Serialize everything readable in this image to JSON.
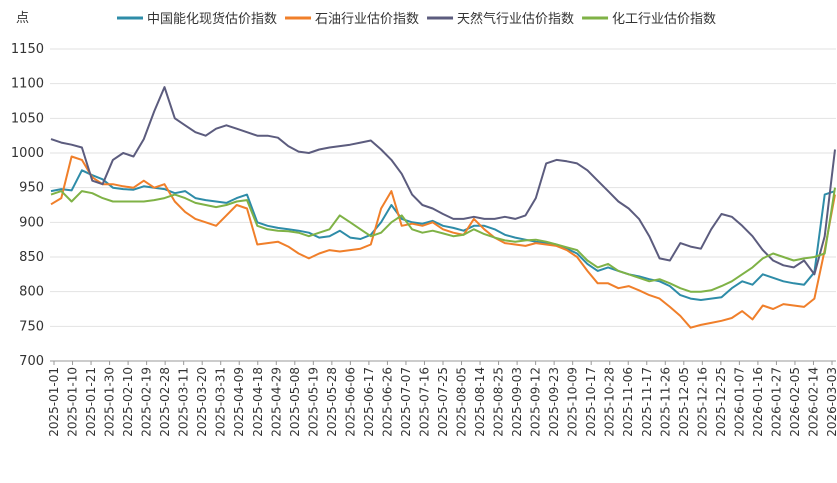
{
  "chart_data": {
    "type": "line",
    "ylabel": "点",
    "ylim": [
      700,
      1150
    ],
    "yticks": [
      700,
      750,
      800,
      850,
      900,
      950,
      1000,
      1050,
      1100,
      1150
    ],
    "x_tick_labels": [
      "2025-01-01",
      "2025-01-10",
      "2025-01-21",
      "2025-01-30",
      "2025-02-10",
      "2025-02-19",
      "2025-02-28",
      "2025-03-11",
      "2025-03-20",
      "2025-03-31",
      "2025-04-09",
      "2025-04-18",
      "2025-04-29",
      "2025-05-08",
      "2025-05-19",
      "2025-05-28",
      "2025-06-06",
      "2025-06-17",
      "2025-06-26",
      "2025-07-07",
      "2025-07-16",
      "2025-07-25",
      "2025-08-05",
      "2025-08-14",
      "2025-08-25",
      "2025-09-03",
      "2025-09-12",
      "2025-09-23",
      "2025-10-09",
      "2025-10-17",
      "2025-10-28",
      "2025-11-06",
      "2025-11-17",
      "2025-11-26",
      "2025-12-05",
      "2025-12-16",
      "2025-12-25",
      "2026-01-07",
      "2026-01-16",
      "2026-01-27",
      "2026-02-05",
      "2026-02-14",
      "2026-03-03"
    ],
    "grid": "horizontal",
    "legend_position": "top",
    "series": [
      {
        "name": "中国能化现货估价指数",
        "color": "#2e8ca8",
        "values": [
          945,
          948,
          946,
          975,
          968,
          962,
          950,
          948,
          947,
          952,
          950,
          948,
          942,
          945,
          935,
          932,
          930,
          928,
          935,
          940,
          900,
          895,
          892,
          890,
          888,
          885,
          878,
          880,
          888,
          878,
          876,
          882,
          900,
          925,
          905,
          900,
          898,
          902,
          895,
          892,
          888,
          895,
          895,
          890,
          882,
          878,
          875,
          872,
          870,
          868,
          862,
          855,
          840,
          830,
          835,
          830,
          825,
          822,
          818,
          815,
          808,
          795,
          790,
          788,
          790,
          792,
          805,
          815,
          810,
          825,
          820,
          815,
          812,
          810,
          828,
          940,
          945
        ]
      },
      {
        "name": "石油行业估价指数",
        "color": "#f07f2a",
        "values": [
          926,
          935,
          995,
          990,
          965,
          955,
          955,
          952,
          950,
          960,
          950,
          955,
          930,
          915,
          905,
          900,
          895,
          910,
          925,
          920,
          868,
          870,
          872,
          865,
          855,
          848,
          855,
          860,
          858,
          860,
          862,
          868,
          920,
          945,
          895,
          898,
          895,
          900,
          890,
          885,
          882,
          905,
          890,
          878,
          870,
          868,
          866,
          870,
          868,
          866,
          860,
          850,
          830,
          812,
          812,
          805,
          808,
          802,
          795,
          790,
          778,
          765,
          748,
          752,
          755,
          758,
          762,
          772,
          760,
          780,
          775,
          782,
          780,
          778,
          790,
          860,
          940
        ]
      },
      {
        "name": "天然气行业估价指数",
        "color": "#5c5c7e",
        "values": [
          1020,
          1015,
          1012,
          1008,
          960,
          955,
          990,
          1000,
          995,
          1020,
          1060,
          1095,
          1050,
          1040,
          1030,
          1025,
          1035,
          1040,
          1035,
          1030,
          1025,
          1025,
          1022,
          1010,
          1002,
          1000,
          1005,
          1008,
          1010,
          1012,
          1015,
          1018,
          1005,
          990,
          970,
          940,
          925,
          920,
          912,
          905,
          905,
          908,
          905,
          905,
          908,
          905,
          910,
          935,
          985,
          990,
          988,
          985,
          975,
          960,
          945,
          930,
          920,
          905,
          880,
          848,
          845,
          870,
          865,
          862,
          890,
          912,
          908,
          895,
          880,
          860,
          845,
          838,
          835,
          845,
          825,
          880,
          1005
        ]
      },
      {
        "name": "化工行业估价指数",
        "color": "#7fb246",
        "values": [
          940,
          945,
          930,
          945,
          942,
          935,
          930,
          930,
          930,
          930,
          932,
          935,
          940,
          935,
          928,
          925,
          922,
          925,
          930,
          932,
          895,
          890,
          888,
          887,
          885,
          880,
          885,
          890,
          910,
          900,
          890,
          880,
          885,
          900,
          910,
          890,
          885,
          888,
          884,
          880,
          882,
          890,
          883,
          878,
          874,
          872,
          874,
          875,
          872,
          868,
          864,
          860,
          845,
          835,
          840,
          830,
          825,
          820,
          815,
          818,
          812,
          805,
          800,
          800,
          802,
          808,
          815,
          825,
          835,
          848,
          855,
          850,
          845,
          848,
          850,
          855,
          950
        ]
      }
    ]
  }
}
